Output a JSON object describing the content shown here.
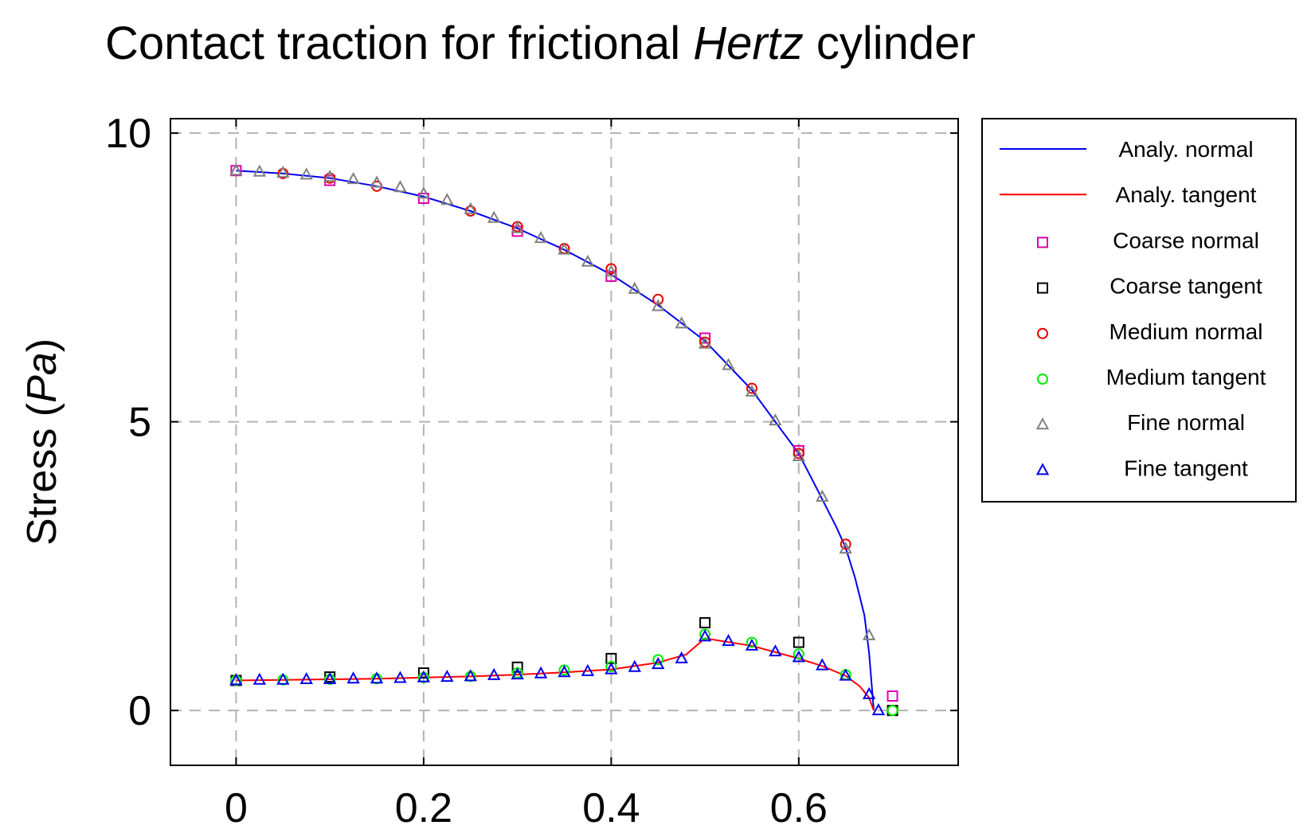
{
  "chart_data": {
    "type": "line",
    "title": {
      "prefix": "Contact traction for frictional ",
      "emphasis": "Hertz",
      "suffix": " cylinder"
    },
    "xlabel": "",
    "ylabel": {
      "prefix": "Stress (",
      "emphasis": "Pa",
      "suffix": ")"
    },
    "xlim": [
      -0.07,
      0.77
    ],
    "ylim": [
      -0.95,
      10.25
    ],
    "x_ticks": [
      0,
      0.2,
      0.4,
      0.6
    ],
    "x_tick_labels": [
      "0",
      "0.2",
      "0.4",
      "0.6"
    ],
    "y_ticks": [
      0,
      5,
      10
    ],
    "y_tick_labels": [
      "0",
      "5",
      "10"
    ],
    "grid": true,
    "legend_position": "outside-right-top",
    "series": [
      {
        "name": "Analy. normal",
        "kind": "line",
        "color": "#0000ee",
        "x": [
          0,
          0.05,
          0.1,
          0.15,
          0.2,
          0.25,
          0.3,
          0.35,
          0.4,
          0.45,
          0.5,
          0.55,
          0.6,
          0.62,
          0.64,
          0.65,
          0.66,
          0.67,
          0.675,
          0.68
        ],
        "y": [
          9.35,
          9.3,
          9.22,
          9.08,
          8.9,
          8.65,
          8.35,
          7.98,
          7.55,
          7.02,
          6.4,
          5.55,
          4.45,
          3.82,
          3.18,
          2.82,
          2.3,
          1.65,
          1.0,
          0.0
        ]
      },
      {
        "name": "Analy. tangent",
        "kind": "line",
        "color": "#ff0000",
        "x": [
          0,
          0.05,
          0.1,
          0.15,
          0.2,
          0.25,
          0.3,
          0.35,
          0.4,
          0.45,
          0.48,
          0.5,
          0.55,
          0.6,
          0.625,
          0.65,
          0.665,
          0.675,
          0.68
        ],
        "y": [
          0.52,
          0.53,
          0.54,
          0.55,
          0.57,
          0.59,
          0.62,
          0.66,
          0.71,
          0.83,
          0.97,
          1.25,
          1.12,
          0.9,
          0.77,
          0.6,
          0.42,
          0.22,
          0.0
        ]
      },
      {
        "name": "Coarse normal",
        "kind": "square",
        "color": "#dd00aa",
        "x": [
          0,
          0.1,
          0.2,
          0.3,
          0.4,
          0.5,
          0.6,
          0.7
        ],
        "y": [
          9.35,
          9.18,
          8.87,
          8.3,
          7.52,
          6.45,
          4.5,
          0.25
        ]
      },
      {
        "name": "Coarse tangent",
        "kind": "square",
        "color": "#000000",
        "x": [
          0,
          0.1,
          0.2,
          0.3,
          0.4,
          0.5,
          0.6,
          0.7
        ],
        "y": [
          0.52,
          0.58,
          0.65,
          0.75,
          0.9,
          1.52,
          1.18,
          0.0
        ]
      },
      {
        "name": "Medium normal",
        "kind": "circle",
        "color": "#ee0000",
        "x": [
          0.05,
          0.1,
          0.15,
          0.25,
          0.3,
          0.35,
          0.4,
          0.45,
          0.5,
          0.55,
          0.6,
          0.65
        ],
        "y": [
          9.3,
          9.22,
          9.08,
          8.65,
          8.38,
          8.0,
          7.65,
          7.12,
          6.38,
          5.58,
          4.45,
          2.88
        ]
      },
      {
        "name": "Medium tangent",
        "kind": "circle",
        "color": "#00ee00",
        "x": [
          0,
          0.05,
          0.1,
          0.15,
          0.2,
          0.25,
          0.3,
          0.35,
          0.4,
          0.45,
          0.5,
          0.55,
          0.6,
          0.65,
          0.7
        ],
        "y": [
          0.52,
          0.53,
          0.54,
          0.55,
          0.57,
          0.59,
          0.65,
          0.7,
          0.76,
          0.88,
          1.32,
          1.18,
          0.98,
          0.62,
          0.0
        ]
      },
      {
        "name": "Fine normal",
        "kind": "triangle",
        "color": "#808080",
        "x": [
          0,
          0.025,
          0.05,
          0.075,
          0.1,
          0.125,
          0.15,
          0.175,
          0.2,
          0.225,
          0.25,
          0.275,
          0.3,
          0.325,
          0.35,
          0.375,
          0.4,
          0.425,
          0.45,
          0.475,
          0.5,
          0.525,
          0.55,
          0.575,
          0.6,
          0.625,
          0.65,
          0.675
        ],
        "y": [
          9.35,
          9.33,
          9.31,
          9.28,
          9.24,
          9.2,
          9.14,
          9.06,
          8.95,
          8.84,
          8.68,
          8.53,
          8.35,
          8.18,
          7.98,
          7.77,
          7.6,
          7.3,
          7.0,
          6.7,
          6.35,
          5.98,
          5.52,
          5.02,
          4.4,
          3.7,
          2.8,
          1.3
        ]
      },
      {
        "name": "Fine tangent",
        "kind": "triangle",
        "color": "#0000ee",
        "x": [
          0,
          0.025,
          0.05,
          0.075,
          0.1,
          0.125,
          0.15,
          0.175,
          0.2,
          0.225,
          0.25,
          0.275,
          0.3,
          0.325,
          0.35,
          0.375,
          0.4,
          0.425,
          0.45,
          0.475,
          0.5,
          0.525,
          0.55,
          0.575,
          0.6,
          0.625,
          0.65,
          0.675,
          0.685
        ],
        "y": [
          0.52,
          0.53,
          0.53,
          0.54,
          0.54,
          0.55,
          0.55,
          0.56,
          0.57,
          0.58,
          0.59,
          0.61,
          0.62,
          0.64,
          0.66,
          0.68,
          0.71,
          0.75,
          0.8,
          0.9,
          1.28,
          1.2,
          1.12,
          1.02,
          0.92,
          0.78,
          0.6,
          0.28,
          0.0
        ]
      }
    ]
  }
}
